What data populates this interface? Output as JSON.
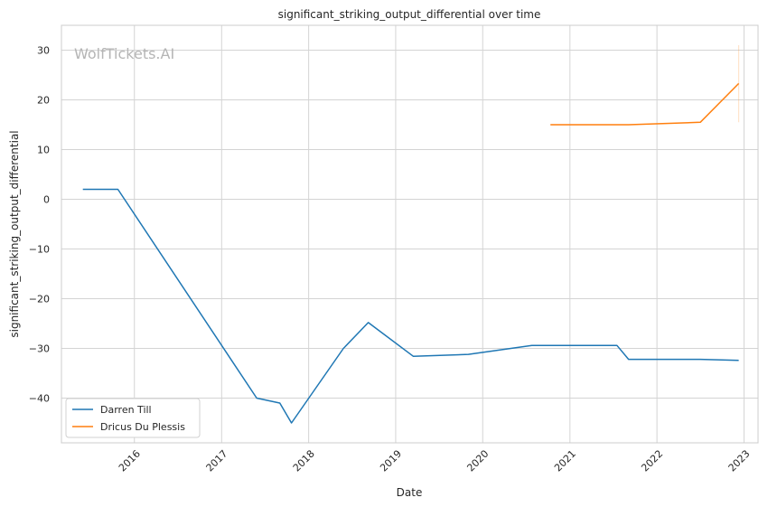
{
  "chart_data": {
    "type": "line",
    "title": "significant_striking_output_differential over time",
    "xlabel": "Date",
    "ylabel": "significant_striking_output_differential",
    "watermark": "WolfTickets.AI",
    "x_ticks": [
      "2016",
      "2017",
      "2018",
      "2019",
      "2020",
      "2021",
      "2022",
      "2023"
    ],
    "y_ticks": [
      30,
      20,
      10,
      0,
      -10,
      -20,
      -30,
      -40
    ],
    "xlim": [
      "2015-03-01",
      "2023-03-01"
    ],
    "ylim": [
      -49,
      35
    ],
    "grid": true,
    "legend_position": "bottom-left",
    "series": [
      {
        "name": "Darren Till",
        "color": "#1f77b4",
        "points": [
          [
            "2015-05-30",
            2
          ],
          [
            "2015-10-24",
            2
          ],
          [
            "2017-05-28",
            -40
          ],
          [
            "2017-09-02",
            -41
          ],
          [
            "2017-10-21",
            -45
          ],
          [
            "2018-05-27",
            -30
          ],
          [
            "2018-09-08",
            -24.8
          ],
          [
            "2019-03-16",
            -31.6
          ],
          [
            "2019-11-02",
            -31.2
          ],
          [
            "2020-07-25",
            -29.4
          ],
          [
            "2021-07-17",
            -29.4
          ],
          [
            "2021-09-04",
            -32.2
          ],
          [
            "2022-07-02",
            -32.2
          ],
          [
            "2022-12-10",
            -32.4
          ]
        ]
      },
      {
        "name": "Dricus Du Plessis",
        "color": "#ff7f0e",
        "points": [
          [
            "2020-10-11",
            15
          ],
          [
            "2021-09-04",
            15
          ],
          [
            "2022-07-02",
            15.5
          ],
          [
            "2022-12-10",
            23.3
          ]
        ],
        "error_band": {
          "x": "2022-12-10",
          "low": 15.5,
          "high": 31
        }
      }
    ]
  }
}
